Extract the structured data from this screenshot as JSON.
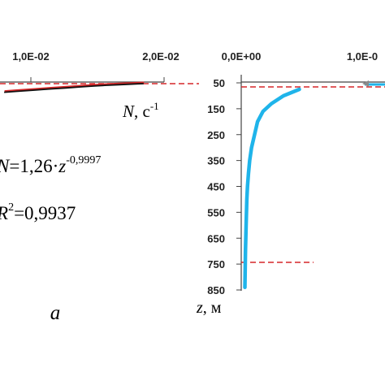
{
  "charts": {
    "left": {
      "x_tick_labels": [
        "1,0E-02",
        "2,0E-02"
      ],
      "axis_label_symbol": "N",
      "axis_label_unit": ", c",
      "axis_label_unit_sup": "-1",
      "equation": {
        "lhs": "N",
        "rhs_coef": "=1,26·",
        "rhs_var": "z",
        "rhs_exp": "-0,9997"
      },
      "r2": {
        "symbol": "R",
        "sup": "2",
        "value": "=0,9937"
      },
      "panel_label": "a"
    },
    "right": {
      "x_tick_labels": [
        "0,0E+00",
        "1,0E-0"
      ],
      "y_tick_labels": [
        "50",
        "150",
        "250",
        "350",
        "450",
        "550",
        "650",
        "750",
        "850"
      ],
      "y_axis_label_symbol": "z",
      "y_axis_label_unit": ", м"
    }
  },
  "chart_data": [
    {
      "type": "line",
      "xlabel": "N, c-1",
      "xlim": [
        0,
        0.02
      ],
      "series": [
        {
          "x": [
            0.0005,
            0.002,
            0.004,
            0.006,
            0.008,
            0.0098,
            0.0115,
            0.013,
            0.0145,
            0.0158,
            0.0168,
            0.0175
          ],
          "y": [
            118,
            113,
            107,
            100,
            94,
            88,
            83,
            79,
            76,
            73,
            71,
            70
          ]
        }
      ],
      "fit": {
        "equation": "N=1,26·z^-0,9997",
        "r2": 0.9937
      },
      "reference_lines": [
        {
          "orientation": "horizontal",
          "style": "dashed",
          "color": "#d62728"
        }
      ],
      "legend": "none"
    },
    {
      "type": "line",
      "xlabel": "",
      "ylabel": "z, м",
      "y_inverted": true,
      "ylim": [
        25,
        850
      ],
      "y_ticks": [
        50,
        150,
        250,
        350,
        450,
        550,
        650,
        750,
        850
      ],
      "series": [
        {
          "color": "#1fb4ea",
          "x": [
            0.0048,
            0.0035,
            0.0025,
            0.0018,
            0.00135,
            0.0011,
            0.00085,
            0.0007,
            0.0006,
            0.00052,
            0.00046,
            0.0004,
            0.00035,
            0.0003
          ],
          "y": [
            75,
            100,
            130,
            160,
            200,
            250,
            300,
            350,
            400,
            450,
            500,
            600,
            700,
            840
          ]
        }
      ],
      "reference_lines": [
        {
          "orientation": "horizontal",
          "y": 75,
          "style": "dashed",
          "color": "#d62728"
        },
        {
          "orientation": "horizontal",
          "y": 740,
          "style": "dashed",
          "color": "#d62728"
        }
      ],
      "legend": "none"
    }
  ]
}
